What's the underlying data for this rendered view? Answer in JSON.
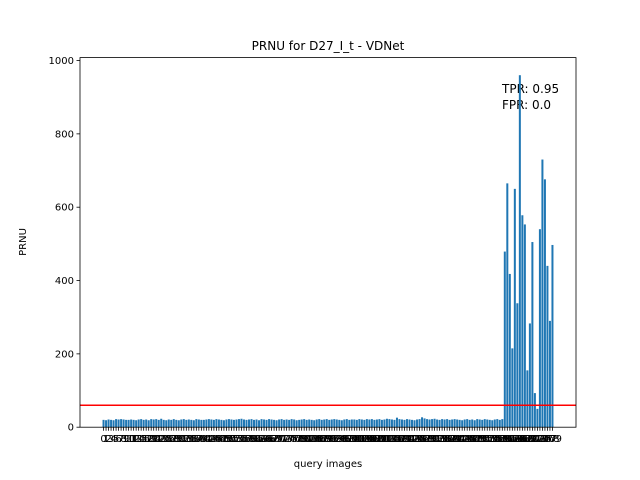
{
  "chart_data": {
    "type": "bar",
    "title": "PRNU for D27_I_t - VDNet",
    "xlabel": "query images",
    "ylabel": "PRNU",
    "categories": [
      0,
      1,
      2,
      3,
      4,
      5,
      6,
      7,
      8,
      9,
      10,
      11,
      12,
      13,
      14,
      15,
      16,
      17,
      18,
      19,
      20,
      21,
      22,
      23,
      24,
      25,
      26,
      27,
      28,
      29,
      30,
      31,
      32,
      33,
      34,
      35,
      36,
      37,
      38,
      39,
      40,
      41,
      42,
      43,
      44,
      45,
      46,
      47,
      48,
      49,
      50,
      51,
      52,
      53,
      54,
      55,
      56,
      57,
      58,
      59,
      60,
      61,
      62,
      63,
      64,
      65,
      66,
      67,
      68,
      69,
      70,
      71,
      72,
      73,
      74,
      75,
      76,
      77,
      78,
      79,
      80,
      81,
      82,
      83,
      84,
      85,
      86,
      87,
      88,
      89,
      90,
      91,
      92,
      93,
      94,
      95,
      96,
      97,
      98,
      99,
      100,
      101,
      102,
      103,
      104,
      105,
      106,
      107,
      108,
      109,
      110,
      111,
      112,
      113,
      114,
      115,
      116,
      117,
      118,
      119,
      120,
      121,
      122,
      123,
      124,
      125,
      126,
      127,
      128,
      129,
      130,
      131,
      132,
      133,
      134,
      135,
      136,
      137,
      138,
      139,
      140,
      141,
      142,
      143,
      144,
      145,
      146,
      147,
      148,
      149,
      150,
      151,
      152,
      153,
      154,
      155,
      156,
      157,
      158,
      159,
      160,
      161,
      162,
      163,
      164,
      165,
      166,
      167,
      168,
      169,
      170,
      171,
      172,
      173,
      174,
      175,
      176,
      177,
      178,
      179
    ],
    "values": [
      20,
      19,
      21,
      20,
      19,
      22,
      21,
      22,
      21,
      20,
      20,
      21,
      20,
      19,
      21,
      22,
      20,
      21,
      19,
      22,
      21,
      22,
      20,
      23,
      20,
      19,
      21,
      20,
      22,
      20,
      19,
      21,
      22,
      20,
      21,
      20,
      19,
      22,
      21,
      20,
      20,
      21,
      22,
      21,
      20,
      22,
      21,
      20,
      19,
      21,
      22,
      21,
      20,
      21,
      22,
      23,
      21,
      20,
      21,
      22,
      20,
      21,
      19,
      22,
      21,
      20,
      22,
      21,
      20,
      19,
      21,
      22,
      20,
      21,
      20,
      22,
      21,
      19,
      20,
      21,
      22,
      20,
      21,
      20,
      19,
      21,
      22,
      20,
      21,
      22,
      20,
      21,
      22,
      21,
      20,
      19,
      21,
      22,
      20,
      21,
      21,
      20,
      22,
      21,
      20,
      22,
      21,
      22,
      20,
      21,
      22,
      20,
      21,
      23,
      22,
      21,
      20,
      26,
      22,
      21,
      20,
      22,
      21,
      20,
      19,
      21,
      22,
      27,
      24,
      22,
      21,
      22,
      23,
      21,
      20,
      22,
      21,
      22,
      20,
      21,
      22,
      21,
      20,
      19,
      21,
      22,
      20,
      21,
      19,
      22,
      21,
      20,
      22,
      21,
      20,
      19,
      21,
      22,
      20,
      22,
      479,
      665,
      418,
      215,
      650,
      338,
      960,
      578,
      553,
      155,
      283,
      505,
      93,
      50,
      540,
      730,
      676,
      440,
      290,
      497
    ],
    "color": "#1f77b4",
    "threshold": 60,
    "threshold_color": "#ff0000",
    "annotation": [
      "TPR: 0.95",
      "FPR: 0.0"
    ],
    "ylim": [
      0,
      1008
    ],
    "yticks": [
      0,
      200,
      400,
      600,
      800,
      1000
    ]
  }
}
